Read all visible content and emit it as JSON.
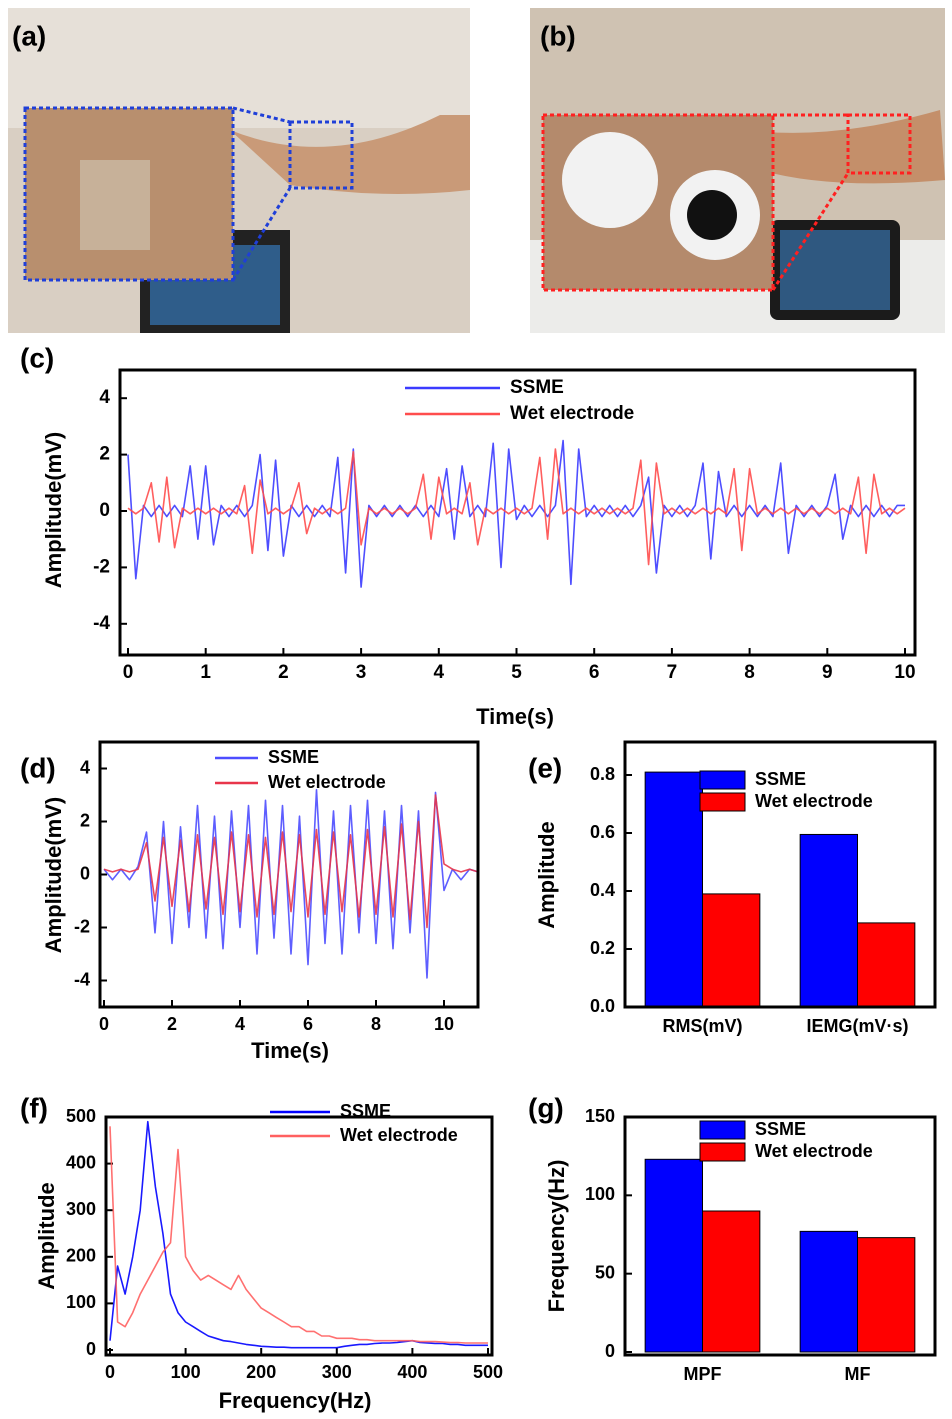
{
  "panels": [
    {
      "label": "(a)"
    },
    {
      "label": "(b)"
    }
  ],
  "chart_data": [
    {
      "type": "line",
      "panel_label": "(c)",
      "xlabel": "Time(s)",
      "ylabel": "Amplitude(mV)",
      "xlim": [
        0,
        10
      ],
      "xticks": [
        0,
        1,
        2,
        3,
        4,
        5,
        6,
        7,
        8,
        9,
        10
      ],
      "ylim": [
        -5,
        5
      ],
      "yticks": [
        -4,
        -2,
        0,
        2,
        4
      ],
      "x": [
        0,
        0.1,
        0.2,
        0.3,
        0.4,
        0.5,
        0.6,
        0.7,
        0.8,
        0.9,
        1,
        1.1,
        1.2,
        1.3,
        1.4,
        1.5,
        1.6,
        1.7,
        1.8,
        1.9,
        2,
        2.1,
        2.2,
        2.3,
        2.4,
        2.5,
        2.6,
        2.7,
        2.8,
        2.9,
        3,
        3.1,
        3.2,
        3.3,
        3.4,
        3.5,
        3.6,
        3.7,
        3.8,
        3.9,
        4,
        4.1,
        4.2,
        4.3,
        4.4,
        4.5,
        4.6,
        4.7,
        4.8,
        4.9,
        5,
        5.1,
        5.2,
        5.3,
        5.4,
        5.5,
        5.6,
        5.7,
        5.8,
        5.9,
        6,
        6.1,
        6.2,
        6.3,
        6.4,
        6.5,
        6.6,
        6.7,
        6.8,
        6.9,
        7,
        7.1,
        7.2,
        7.3,
        7.4,
        7.5,
        7.6,
        7.7,
        7.8,
        7.9,
        8,
        8.1,
        8.2,
        8.3,
        8.4,
        8.5,
        8.6,
        8.7,
        8.8,
        8.9,
        9,
        9.1,
        9.2,
        9.3,
        9.4,
        9.5,
        9.6,
        9.7,
        9.8,
        9.9,
        10
      ],
      "series": [
        {
          "name": "SSME",
          "color": "#3b3bff",
          "values": [
            2.0,
            -2.4,
            0.2,
            -0.2,
            0.2,
            -0.2,
            0.2,
            -0.2,
            1.6,
            -1.0,
            1.6,
            -1.2,
            0.2,
            -0.2,
            0.2,
            -0.2,
            0.2,
            2.0,
            -1.4,
            1.8,
            -1.6,
            0.2,
            -0.2,
            0.2,
            -0.2,
            0.2,
            -0.2,
            1.9,
            -2.2,
            2.2,
            -2.7,
            0.2,
            -0.2,
            0.2,
            -0.2,
            0.2,
            -0.2,
            0.2,
            -0.2,
            0.2,
            -0.2,
            1.5,
            -1.0,
            1.6,
            -0.2,
            0.2,
            -0.2,
            2.4,
            -2.0,
            2.2,
            -0.3,
            0.2,
            -0.2,
            0.2,
            -0.2,
            0.2,
            2.5,
            -2.6,
            2.2,
            -0.2,
            0.2,
            -0.2,
            0.2,
            -0.2,
            0.2,
            -0.2,
            0.2,
            1.2,
            -2.2,
            0.2,
            -0.2,
            0.2,
            -0.2,
            0.2,
            1.7,
            -1.7,
            1.4,
            -0.2,
            0.2,
            -0.2,
            0.2,
            -0.2,
            0.2,
            -0.2,
            1.7,
            -1.5,
            0.2,
            -0.2,
            0.2,
            -0.2,
            0.2,
            1.3,
            -1.0,
            0.2,
            -0.2,
            0.2,
            -0.2,
            0.2,
            -0.2,
            0.2,
            0.2
          ]
        },
        {
          "name": "Wet electrode",
          "color": "#ff4d4d",
          "values": [
            0.1,
            -0.1,
            0.1,
            1.0,
            -1.1,
            1.2,
            -1.3,
            0.1,
            -0.1,
            0.1,
            -0.1,
            0.1,
            -0.1,
            0.1,
            -0.1,
            0.9,
            -1.5,
            1.1,
            -0.1,
            0.1,
            -0.1,
            0.1,
            1.0,
            -0.8,
            0.1,
            -0.1,
            0.1,
            -0.1,
            0.1,
            2.1,
            -1.2,
            0.1,
            -0.1,
            0.1,
            -0.1,
            0.1,
            -0.1,
            0.1,
            1.3,
            -1.0,
            1.2,
            -0.1,
            0.1,
            -0.1,
            1.0,
            -1.2,
            0.1,
            -0.1,
            0.1,
            -0.1,
            0.1,
            -0.1,
            0.1,
            1.9,
            -1.0,
            2.2,
            -0.1,
            0.1,
            -0.1,
            0.1,
            -0.1,
            0.1,
            -0.1,
            0.1,
            -0.1,
            0.1,
            1.8,
            -1.9,
            1.7,
            -0.1,
            0.1,
            -0.1,
            0.1,
            -0.1,
            0.1,
            -0.1,
            0.1,
            -0.1,
            1.5,
            -1.4,
            1.5,
            -0.1,
            0.1,
            -0.1,
            0.1,
            -0.1,
            0.1,
            -0.1,
            0.1,
            -0.1,
            0.1,
            -0.1,
            0.1,
            -0.1,
            1.2,
            -1.5,
            1.3,
            -0.1,
            0.1,
            -0.1,
            0.1
          ]
        }
      ]
    },
    {
      "type": "line",
      "panel_label": "(d)",
      "xlabel": "Time(s)",
      "ylabel": "Amplitude(mV)",
      "xlim": [
        0,
        11
      ],
      "xticks": [
        0,
        2,
        4,
        6,
        8,
        10
      ],
      "ylim": [
        -5,
        5
      ],
      "yticks": [
        -4,
        -2,
        0,
        2,
        4
      ],
      "x": [
        0,
        0.25,
        0.5,
        0.75,
        1,
        1.25,
        1.5,
        1.75,
        2,
        2.25,
        2.5,
        2.75,
        3,
        3.25,
        3.5,
        3.75,
        4,
        4.25,
        4.5,
        4.75,
        5,
        5.25,
        5.5,
        5.75,
        6,
        6.25,
        6.5,
        6.75,
        7,
        7.25,
        7.5,
        7.75,
        8,
        8.25,
        8.5,
        8.75,
        9,
        9.25,
        9.5,
        9.75,
        10,
        10.25,
        10.5,
        10.75,
        11
      ],
      "series": [
        {
          "name": "SSME",
          "color": "#4d4dff",
          "values": [
            0.2,
            -0.2,
            0.2,
            -0.2,
            0.3,
            1.6,
            -2.2,
            2.0,
            -2.6,
            1.8,
            -2.0,
            2.6,
            -2.4,
            2.2,
            -2.8,
            2.4,
            -2.0,
            2.6,
            -3.0,
            2.8,
            -2.4,
            2.6,
            -3.0,
            2.2,
            -3.4,
            3.2,
            -2.6,
            2.4,
            -3.0,
            2.6,
            -2.2,
            2.8,
            -2.6,
            2.4,
            -2.8,
            2.6,
            -2.2,
            2.4,
            -3.9,
            3.1,
            -0.6,
            0.2,
            -0.2,
            0.2,
            0.1
          ]
        },
        {
          "name": "Wet electrode",
          "color": "#e8354a",
          "values": [
            0.2,
            0.1,
            0.2,
            0.1,
            0.2,
            1.2,
            -1.0,
            1.4,
            -1.2,
            1.3,
            -1.4,
            1.5,
            -1.3,
            1.4,
            -1.5,
            1.6,
            -1.4,
            1.5,
            -1.6,
            1.4,
            -1.5,
            1.6,
            -1.4,
            1.5,
            -1.6,
            1.7,
            -1.5,
            1.6,
            -1.4,
            1.5,
            -1.6,
            1.7,
            -1.5,
            1.8,
            -1.6,
            1.9,
            -1.7,
            2.0,
            -2.0,
            3.0,
            0.4,
            0.2,
            0.1,
            0.2,
            0.1
          ]
        }
      ]
    },
    {
      "type": "bar",
      "panel_label": "(e)",
      "ylabel": "Amplitude",
      "categories": [
        "RMS(mV)",
        "IEMG(mV·s)"
      ],
      "ylim": [
        0,
        0.9
      ],
      "yticks": [
        {
          "value": 0,
          "label": "0.0"
        },
        0.2,
        0.4,
        0.6,
        0.8
      ],
      "series": [
        {
          "name": "SSME",
          "color": "#0000ff",
          "values": [
            0.81,
            0.595
          ]
        },
        {
          "name": "Wet electrode",
          "color": "#ff0000",
          "values": [
            0.39,
            0.29
          ]
        }
      ]
    },
    {
      "type": "line",
      "panel_label": "(f)",
      "xlabel": "Frequency(Hz)",
      "ylabel": "Amplitude",
      "xlim": [
        0,
        500
      ],
      "xticks": [
        0,
        100,
        200,
        300,
        400,
        500
      ],
      "ylim": [
        0,
        500
      ],
      "yticks": [
        0,
        100,
        200,
        300,
        400,
        500
      ],
      "x": [
        0,
        10,
        20,
        30,
        40,
        50,
        60,
        70,
        80,
        90,
        100,
        110,
        120,
        130,
        140,
        150,
        160,
        170,
        180,
        190,
        200,
        210,
        220,
        230,
        240,
        250,
        260,
        270,
        280,
        290,
        300,
        310,
        320,
        330,
        340,
        350,
        360,
        370,
        380,
        390,
        400,
        410,
        420,
        430,
        440,
        450,
        460,
        470,
        480,
        490,
        500
      ],
      "series": [
        {
          "name": "SSME",
          "color": "#0000ff",
          "values": [
            20,
            180,
            120,
            200,
            300,
            490,
            350,
            250,
            120,
            80,
            60,
            50,
            40,
            30,
            25,
            20,
            18,
            15,
            12,
            10,
            8,
            7,
            6,
            6,
            5,
            5,
            5,
            5,
            5,
            5,
            5,
            8,
            10,
            12,
            12,
            14,
            15,
            15,
            16,
            18,
            20,
            16,
            15,
            14,
            14,
            12,
            12,
            10,
            10,
            10,
            10
          ]
        },
        {
          "name": "Wet electrode",
          "color": "#ff6060",
          "values": [
            480,
            60,
            50,
            80,
            120,
            150,
            180,
            210,
            230,
            430,
            200,
            170,
            150,
            160,
            150,
            140,
            130,
            160,
            130,
            110,
            90,
            80,
            70,
            60,
            50,
            50,
            40,
            40,
            30,
            30,
            25,
            25,
            25,
            22,
            22,
            20,
            20,
            20,
            20,
            20,
            20,
            18,
            18,
            18,
            17,
            16,
            16,
            15,
            15,
            15,
            15
          ]
        }
      ]
    },
    {
      "type": "bar",
      "panel_label": "(g)",
      "ylabel": "Frequency(Hz)",
      "categories": [
        "MPF",
        "MF"
      ],
      "ylim": [
        0,
        150
      ],
      "yticks": [
        0,
        50,
        100,
        150
      ],
      "series": [
        {
          "name": "SSME",
          "color": "#0000ff",
          "values": [
            123,
            77
          ]
        },
        {
          "name": "Wet electrode",
          "color": "#ff0000",
          "values": [
            90,
            73
          ]
        }
      ]
    }
  ]
}
